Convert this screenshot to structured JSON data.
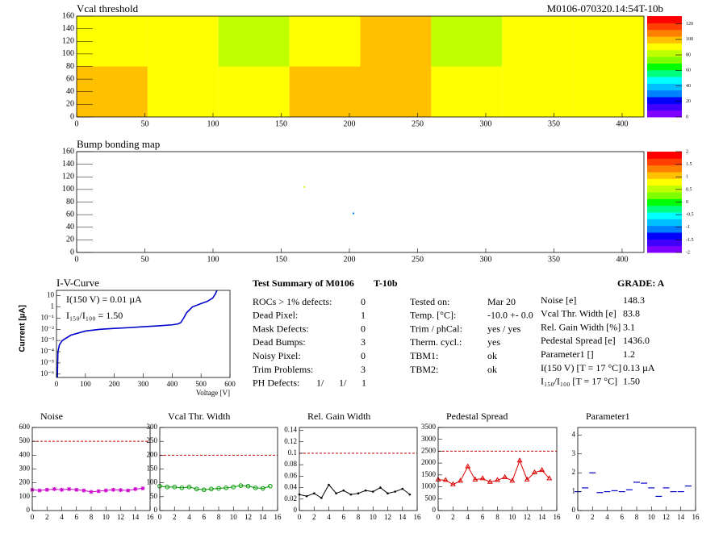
{
  "chart_data": [
    {
      "type": "heatmap",
      "title": "Vcal threshold",
      "subtitle": "M0106-070320.14:54T-10b",
      "x_edges": [
        0,
        52,
        104,
        156,
        208,
        260,
        312,
        364,
        416
      ],
      "y_edges": [
        0,
        80,
        160
      ],
      "values": [
        [
          105,
          90,
          95,
          105,
          102,
          92,
          92,
          95
        ],
        [
          95,
          95,
          85,
          95,
          100,
          80,
          92,
          95
        ]
      ],
      "xlim": [
        0,
        416
      ],
      "ylim": [
        0,
        160
      ],
      "xticks": [
        0,
        50,
        100,
        150,
        200,
        250,
        300,
        350,
        400
      ],
      "yticks": [
        0,
        20,
        40,
        60,
        80,
        100,
        120,
        140,
        160
      ],
      "zlim": [
        0,
        130
      ],
      "zticks": [
        0,
        20,
        40,
        60,
        80,
        100,
        120
      ],
      "palette": [
        "#8000ff",
        "#4000ff",
        "#0000ff",
        "#0080ff",
        "#00c0ff",
        "#00ffff",
        "#00ff80",
        "#00ff00",
        "#80ff00",
        "#c0ff00",
        "#ffff00",
        "#ffc000",
        "#ff8000",
        "#ff4000",
        "#ff0000"
      ]
    },
    {
      "type": "scatter",
      "title": "Bump bonding map",
      "x": [
        167,
        203
      ],
      "y": [
        104,
        62
      ],
      "values": [
        0.5,
        -1.2
      ],
      "xlim": [
        0,
        416
      ],
      "ylim": [
        0,
        160
      ],
      "xticks": [
        0,
        50,
        100,
        150,
        200,
        250,
        300,
        350,
        400
      ],
      "yticks": [
        0,
        20,
        40,
        60,
        80,
        100,
        120,
        140,
        160
      ],
      "zlim": [
        -2,
        2
      ],
      "zticks": [
        -2,
        -1.5,
        -1,
        -0.5,
        0,
        0.5,
        1,
        1.5,
        2
      ],
      "palette": [
        "#8000ff",
        "#4000ff",
        "#0000ff",
        "#0080ff",
        "#00c0ff",
        "#00ffff",
        "#00ff80",
        "#00ff00",
        "#80ff00",
        "#c0ff00",
        "#ffff00",
        "#ffc000",
        "#ff8000",
        "#ff4000",
        "#ff0000"
      ]
    },
    {
      "type": "line",
      "title": "I-V-Curve",
      "x_label": "Voltage [V]",
      "y_label": "Current [µA]",
      "log_y": true,
      "color": "#0000cc",
      "x": [
        3,
        5,
        10,
        20,
        50,
        100,
        150,
        200,
        250,
        300,
        350,
        400,
        420,
        430,
        440,
        450,
        470,
        500,
        520,
        540,
        550,
        555
      ],
      "values": [
        5e-07,
        0.0001,
        0.0004,
        0.001,
        0.003,
        0.007,
        0.01,
        0.012,
        0.014,
        0.017,
        0.02,
        0.025,
        0.03,
        0.04,
        0.1,
        0.3,
        1,
        2,
        3,
        6,
        15,
        30
      ],
      "xlim": [
        0,
        600
      ],
      "xticks": [
        0,
        100,
        200,
        300,
        400,
        500,
        600
      ],
      "ylim": [
        5e-07,
        30
      ],
      "yticks": [
        {
          "value": 1e-06,
          "label": "10⁻⁶"
        },
        {
          "value": 1e-05,
          "label": "10⁻⁵"
        },
        {
          "value": 0.0001,
          "label": "10⁻⁴"
        },
        {
          "value": 0.001,
          "label": "10⁻³"
        },
        {
          "value": 0.01,
          "label": "10⁻²"
        },
        {
          "value": 0.1,
          "label": "10⁻¹"
        },
        1,
        10
      ],
      "annotations": [
        "I(150 V) = 0.01 µA",
        "I₁₅₀/I₁₀₀ =  1.50"
      ]
    },
    {
      "type": "line",
      "title": "Noise",
      "color": "#cc00cc",
      "marker": "star",
      "x": [
        0,
        1,
        2,
        3,
        4,
        5,
        6,
        7,
        8,
        9,
        10,
        11,
        12,
        13,
        14,
        15
      ],
      "values": [
        150,
        145,
        150,
        155,
        150,
        155,
        150,
        145,
        135,
        140,
        145,
        150,
        148,
        145,
        155,
        160
      ],
      "limit": 500,
      "xlim": [
        0,
        16
      ],
      "xticks": [
        0,
        2,
        4,
        6,
        8,
        10,
        12,
        14,
        16
      ],
      "ylim": [
        0,
        600
      ],
      "yticks": [
        0,
        100,
        200,
        300,
        400,
        500,
        600
      ]
    },
    {
      "type": "line",
      "title": "Vcal Thr. Width",
      "color": "#009900",
      "marker": "circle",
      "x": [
        0,
        1,
        2,
        3,
        4,
        5,
        6,
        7,
        8,
        9,
        10,
        11,
        12,
        13,
        14,
        15
      ],
      "values": [
        88,
        85,
        85,
        82,
        85,
        78,
        75,
        78,
        80,
        82,
        85,
        90,
        88,
        82,
        80,
        88
      ],
      "limit": 200,
      "xlim": [
        0,
        16
      ],
      "xticks": [
        0,
        2,
        4,
        6,
        8,
        10,
        12,
        14,
        16
      ],
      "ylim": [
        0,
        300
      ],
      "yticks": [
        0,
        50,
        100,
        150,
        200,
        250,
        300
      ]
    },
    {
      "type": "line",
      "title": "Rel. Gain Width",
      "color": "#000000",
      "marker": "dot",
      "x": [
        0,
        1,
        2,
        3,
        4,
        5,
        6,
        7,
        8,
        9,
        10,
        11,
        12,
        13,
        14,
        15
      ],
      "values": [
        0.028,
        0.025,
        0.03,
        0.022,
        0.045,
        0.03,
        0.035,
        0.028,
        0.03,
        0.035,
        0.033,
        0.04,
        0.03,
        0.033,
        0.038,
        0.028
      ],
      "limit": 0.1,
      "xlim": [
        0,
        16
      ],
      "xticks": [
        0,
        2,
        4,
        6,
        8,
        10,
        12,
        14,
        16
      ],
      "ylim": [
        0,
        0.145
      ],
      "yticks": [
        0,
        0.02,
        0.04,
        0.06,
        0.08,
        0.1,
        0.12,
        0.14
      ]
    },
    {
      "type": "line",
      "title": "Pedestal Spread",
      "color": "#dd0000",
      "marker": "triangle",
      "x": [
        0,
        1,
        2,
        3,
        4,
        5,
        6,
        7,
        8,
        9,
        10,
        11,
        12,
        13,
        14,
        15
      ],
      "values": [
        1300,
        1280,
        1100,
        1250,
        1850,
        1300,
        1350,
        1200,
        1280,
        1400,
        1250,
        2100,
        1300,
        1600,
        1700,
        1350
      ],
      "limit": 2500,
      "xlim": [
        0,
        16
      ],
      "xticks": [
        0,
        2,
        4,
        6,
        8,
        10,
        12,
        14,
        16
      ],
      "ylim": [
        0,
        3500
      ],
      "yticks": [
        0,
        500,
        1000,
        1500,
        2000,
        2500,
        3000,
        3500
      ]
    },
    {
      "type": "points",
      "title": "Parameter1",
      "color": "#0000cc",
      "marker": "dash",
      "x": [
        0,
        1,
        2,
        3,
        4,
        5,
        6,
        7,
        8,
        9,
        10,
        11,
        12,
        13,
        14,
        15
      ],
      "values": [
        1.0,
        1.2,
        2.0,
        0.95,
        1.0,
        1.05,
        1.0,
        1.1,
        1.5,
        1.45,
        1.2,
        0.75,
        1.2,
        1.0,
        1.0,
        1.3
      ],
      "xlim": [
        0,
        16
      ],
      "xticks": [
        0,
        2,
        4,
        6,
        8,
        10,
        12,
        14,
        16
      ],
      "ylim": [
        0,
        4.4
      ],
      "yticks": [
        0,
        1,
        2,
        3,
        4
      ]
    }
  ],
  "summary": {
    "title": "Test Summary of M0106",
    "tag": "T-10b",
    "grade": "GRADE:  A",
    "defects": [
      [
        "ROCs > 1% defects:",
        "0"
      ],
      [
        "Dead Pixel:",
        "1"
      ],
      [
        "Mask Defects:",
        "0"
      ],
      [
        "Dead Bumps:",
        "3"
      ],
      [
        "Noisy Pixel:",
        "0"
      ],
      [
        "Trim Problems:",
        "3"
      ]
    ],
    "ph_defects": {
      "label": "PH Defects:",
      "values": [
        "1/",
        "1/",
        "1"
      ],
      "colors": [
        "#000000",
        "#ff0000",
        "#0000ff"
      ]
    },
    "conditions": [
      [
        "Tested on:",
        "Mar 20"
      ],
      [
        "Temp. [°C]:",
        "-10.0 +- 0.0"
      ],
      [
        "Trim / phCal:",
        "yes / yes"
      ],
      [
        "Therm. cycl.:",
        "yes"
      ],
      [
        "TBM1:",
        "ok"
      ],
      [
        "TBM2:",
        "ok"
      ]
    ],
    "results": [
      [
        "Noise [e]",
        "148.3"
      ],
      [
        "Vcal Thr. Width [e]",
        "83.8"
      ],
      [
        "Rel. Gain Width [%]",
        "3.1"
      ],
      [
        "Pedestal Spread [e]",
        "1436.0"
      ],
      [
        "Parameter1 []",
        "1.2"
      ],
      [
        "I(150 V) [T = 17 °C]",
        "0.13 µA"
      ],
      [
        "I₁₅₀/I₁₀₀  [T = 17 °C]",
        "1.50"
      ]
    ]
  }
}
